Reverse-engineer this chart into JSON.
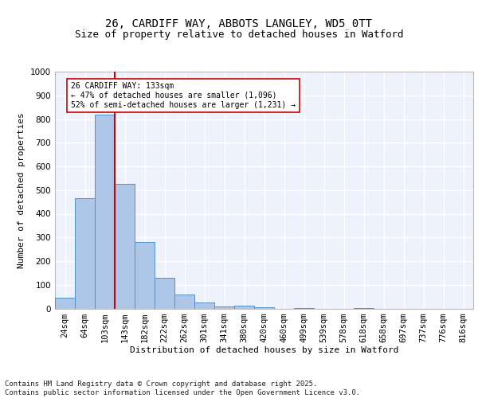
{
  "title1": "26, CARDIFF WAY, ABBOTS LANGLEY, WD5 0TT",
  "title2": "Size of property relative to detached houses in Watford",
  "xlabel": "Distribution of detached houses by size in Watford",
  "ylabel": "Number of detached properties",
  "categories": [
    "24sqm",
    "64sqm",
    "103sqm",
    "143sqm",
    "182sqm",
    "222sqm",
    "262sqm",
    "301sqm",
    "341sqm",
    "380sqm",
    "420sqm",
    "460sqm",
    "499sqm",
    "539sqm",
    "578sqm",
    "618sqm",
    "658sqm",
    "697sqm",
    "737sqm",
    "776sqm",
    "816sqm"
  ],
  "values": [
    45,
    465,
    820,
    525,
    280,
    130,
    60,
    25,
    10,
    13,
    5,
    0,
    2,
    0,
    0,
    3,
    0,
    0,
    0,
    0,
    0
  ],
  "bar_color": "#aec6e8",
  "bar_edge_color": "#5590c8",
  "red_line_x": 3.0,
  "annotation_text": "26 CARDIFF WAY: 133sqm\n← 47% of detached houses are smaller (1,096)\n52% of semi-detached houses are larger (1,231) →",
  "annotation_box_color": "#ffffff",
  "annotation_box_edge": "#cc0000",
  "vline_color": "#cc0000",
  "ylim": [
    0,
    1000
  ],
  "yticks": [
    0,
    100,
    200,
    300,
    400,
    500,
    600,
    700,
    800,
    900,
    1000
  ],
  "background_color": "#eef2fc",
  "grid_color": "#ffffff",
  "footer": "Contains HM Land Registry data © Crown copyright and database right 2025.\nContains public sector information licensed under the Open Government Licence v3.0.",
  "title_fontsize": 10,
  "subtitle_fontsize": 9,
  "annotation_fontsize": 7,
  "footer_fontsize": 6.5,
  "axis_label_fontsize": 8,
  "tick_fontsize": 7.5
}
